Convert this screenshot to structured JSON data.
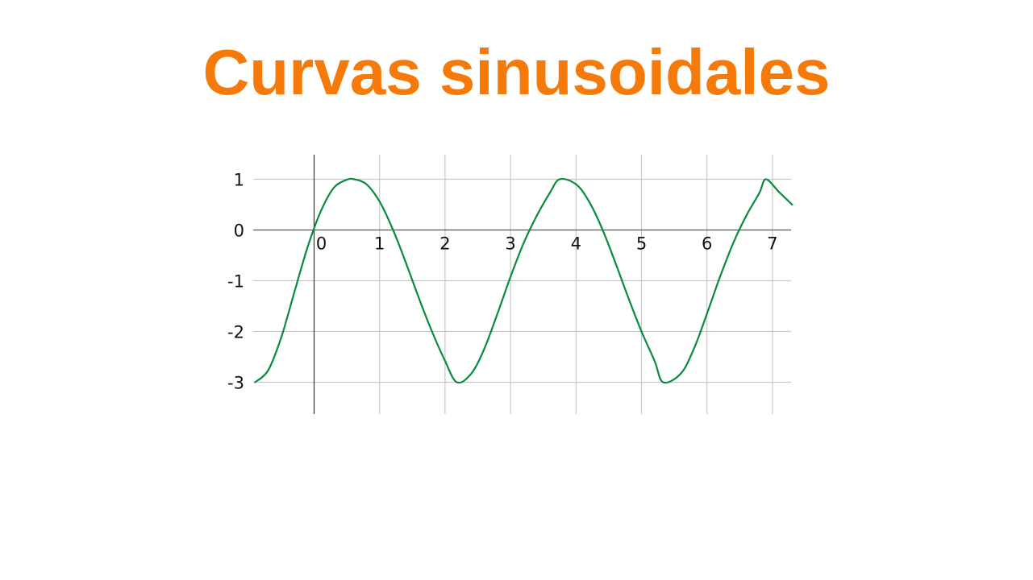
{
  "slide": {
    "title": "Curvas sinusoidales",
    "title_color": "#f57a0a"
  },
  "chart_data": {
    "type": "line",
    "title": "",
    "xlabel": "",
    "ylabel": "",
    "xlim": [
      -0.9,
      7.3
    ],
    "ylim": [
      -3.5,
      1.5
    ],
    "x_ticks": [
      0,
      1,
      2,
      3,
      4,
      5,
      6,
      7
    ],
    "x_tick_labels": [
      "0",
      "1",
      "2",
      "3",
      "4",
      "5",
      "6",
      "7"
    ],
    "y_ticks": [
      1,
      0,
      -1,
      -2,
      -3
    ],
    "y_tick_labels": [
      "1",
      "0",
      "-1",
      "-2",
      "-3"
    ],
    "grid": true,
    "series": [
      {
        "color": "#0a8a3c",
        "x": [
          -0.9,
          -0.7,
          -0.5,
          -0.3,
          -0.1,
          0.1,
          0.3,
          0.5,
          0.61,
          0.8,
          1.0,
          1.2,
          1.4,
          1.6,
          1.8,
          2.0,
          2.18,
          2.4,
          2.6,
          2.8,
          3.0,
          3.2,
          3.4,
          3.6,
          3.75,
          4.0,
          4.2,
          4.4,
          4.6,
          4.8,
          5.0,
          5.2,
          5.33,
          5.6,
          5.8,
          6.0,
          6.2,
          6.4,
          6.6,
          6.8,
          6.9,
          7.1,
          7.3
        ],
        "y": [
          -3.0,
          -2.76,
          -2.11,
          -1.22,
          -0.34,
          0.36,
          0.83,
          0.99,
          1.0,
          0.9,
          0.56,
          0.02,
          -0.64,
          -1.34,
          -2.0,
          -2.58,
          -3.0,
          -2.83,
          -2.34,
          -1.65,
          -0.92,
          -0.26,
          0.28,
          0.73,
          1.0,
          0.9,
          0.56,
          0.02,
          -0.64,
          -1.34,
          -2.0,
          -2.58,
          -3.0,
          -2.83,
          -2.34,
          -1.65,
          -0.92,
          -0.26,
          0.28,
          0.73,
          1.0,
          0.75,
          0.5
        ]
      }
    ]
  }
}
